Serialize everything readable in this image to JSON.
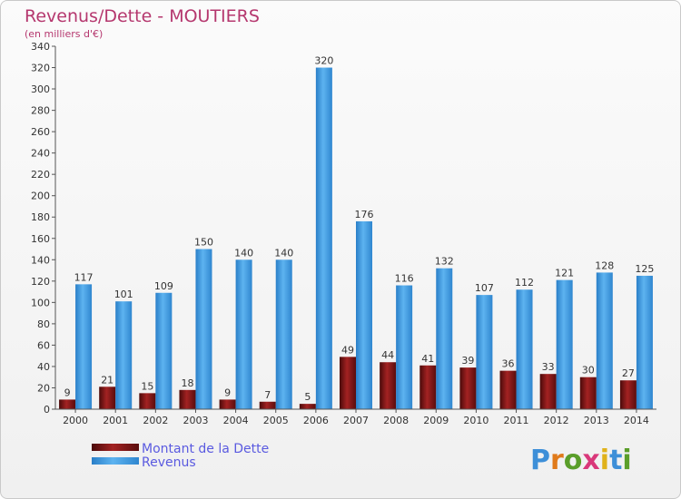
{
  "chart_data": {
    "type": "bar",
    "title": "Revenus/Dette - MOUTIERS",
    "subtitle": "(en milliers d'€)",
    "categories": [
      "2000",
      "2001",
      "2002",
      "2003",
      "2004",
      "2005",
      "2006",
      "2007",
      "2008",
      "2009",
      "2010",
      "2011",
      "2012",
      "2013",
      "2014"
    ],
    "series": [
      {
        "name": "Montant de la Dette",
        "color": "#8b1a1a",
        "values": [
          9,
          21,
          15,
          18,
          9,
          7,
          5,
          49,
          44,
          41,
          39,
          36,
          33,
          30,
          27
        ]
      },
      {
        "name": "Revenus",
        "color": "#3d9ee5",
        "values": [
          117,
          101,
          109,
          150,
          140,
          140,
          320,
          176,
          116,
          132,
          107,
          112,
          121,
          128,
          125
        ]
      }
    ],
    "ylim": [
      0,
      340
    ],
    "yticks": [
      0,
      20,
      40,
      60,
      80,
      100,
      120,
      140,
      160,
      180,
      200,
      220,
      240,
      260,
      280,
      300,
      320,
      340
    ],
    "grid": false,
    "legend": "bottom-left"
  },
  "logo": {
    "text": "Proxiti",
    "letters": [
      "P",
      "r",
      "o",
      "x",
      "i",
      "t",
      "i"
    ],
    "colors": [
      "#3d8fd8",
      "#e07a1a",
      "#5a9e2a",
      "#d9387a",
      "#e0b21a",
      "#3d8fd8",
      "#5a9e2a"
    ]
  }
}
